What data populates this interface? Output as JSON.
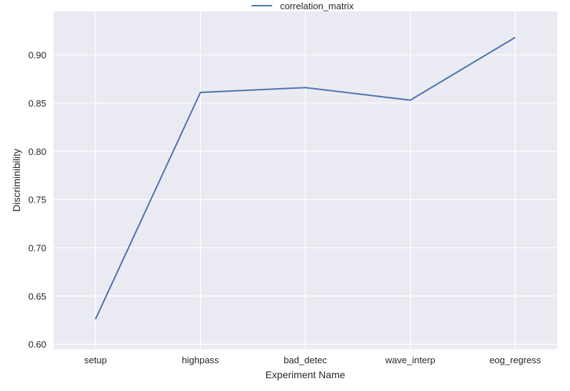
{
  "chart_data": {
    "type": "line",
    "categories": [
      "setup",
      "highpass",
      "bad_detec",
      "wave_interp",
      "eog_regress"
    ],
    "series": [
      {
        "name": "correlation_matrix",
        "values": [
          0.626,
          0.861,
          0.866,
          0.853,
          0.918
        ],
        "color": "#4c72b0"
      }
    ],
    "xlabel": "Experiment Name",
    "ylabel": "Discriminibility",
    "ylim": [
      0.595,
      0.945
    ],
    "yticks": [
      0.6,
      0.65,
      0.7,
      0.75,
      0.8,
      0.85,
      0.9
    ],
    "ytick_labels": [
      "0.60",
      "0.65",
      "0.70",
      "0.75",
      "0.80",
      "0.85",
      "0.90"
    ],
    "grid": true,
    "legend": "top-center",
    "style": {
      "background": "#eaeaf2",
      "grid_color": "#ffffff"
    }
  }
}
